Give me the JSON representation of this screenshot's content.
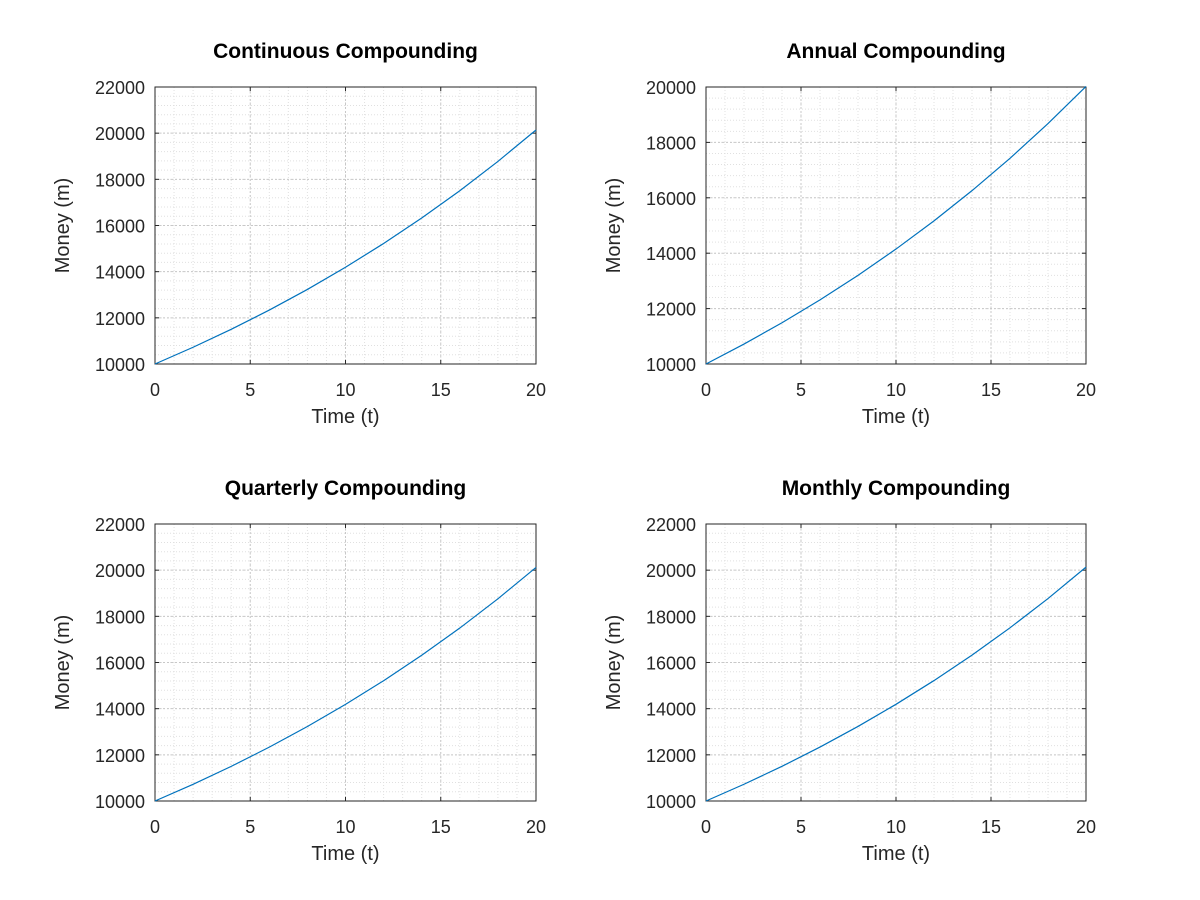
{
  "chart_data": [
    {
      "type": "line",
      "title": "Continuous Compounding",
      "xlabel": "Time (t)",
      "ylabel": "Money (m)",
      "xlim": [
        0,
        20
      ],
      "ylim": [
        10000,
        22000
      ],
      "xticks": [
        0,
        5,
        10,
        15,
        20
      ],
      "yticks": [
        10000,
        12000,
        14000,
        16000,
        18000,
        20000,
        22000
      ],
      "grid": true,
      "minor_grid": true,
      "series": [
        {
          "x": [
            0,
            2,
            4,
            6,
            8,
            10,
            12,
            14,
            16,
            18,
            20
          ],
          "y": [
            10000,
            10725,
            11503,
            12337,
            13231,
            14191,
            15220,
            16323,
            17507,
            18776,
            20138
          ],
          "color": "#0072bd"
        }
      ]
    },
    {
      "type": "line",
      "title": "Annual Compounding",
      "xlabel": "Time (t)",
      "ylabel": "Money (m)",
      "xlim": [
        0,
        20
      ],
      "ylim": [
        10000,
        20000
      ],
      "xticks": [
        0,
        5,
        10,
        15,
        20
      ],
      "yticks": [
        10000,
        12000,
        14000,
        16000,
        18000,
        20000
      ],
      "grid": true,
      "minor_grid": true,
      "series": [
        {
          "x": [
            0,
            2,
            4,
            6,
            8,
            10,
            12,
            14,
            16,
            18,
            20
          ],
          "y": [
            10000,
            10719,
            11490,
            12316,
            13201,
            14150,
            15167,
            16258,
            17426,
            18679,
            20022
          ],
          "color": "#0072bd"
        }
      ]
    },
    {
      "type": "line",
      "title": "Quarterly Compounding",
      "xlabel": "Time (t)",
      "ylabel": "Money (m)",
      "xlim": [
        0,
        20
      ],
      "ylim": [
        10000,
        22000
      ],
      "xticks": [
        0,
        5,
        10,
        15,
        20
      ],
      "yticks": [
        10000,
        12000,
        14000,
        16000,
        18000,
        20000,
        22000
      ],
      "grid": true,
      "minor_grid": true,
      "series": [
        {
          "x": [
            0,
            2,
            4,
            6,
            8,
            10,
            12,
            14,
            16,
            18,
            20
          ],
          "y": [
            10000,
            10724,
            11500,
            12333,
            13226,
            14184,
            15211,
            16312,
            17493,
            18760,
            20118
          ],
          "color": "#0072bd"
        }
      ]
    },
    {
      "type": "line",
      "title": "Monthly Compounding",
      "xlabel": "Time (t)",
      "ylabel": "Money (m)",
      "xlim": [
        0,
        20
      ],
      "ylim": [
        10000,
        22000
      ],
      "xticks": [
        0,
        5,
        10,
        15,
        20
      ],
      "yticks": [
        10000,
        12000,
        14000,
        16000,
        18000,
        20000,
        22000
      ],
      "grid": true,
      "minor_grid": true,
      "series": [
        {
          "x": [
            0,
            2,
            4,
            6,
            8,
            10,
            12,
            14,
            16,
            18,
            20
          ],
          "y": [
            10000,
            10725,
            11502,
            12336,
            13230,
            14189,
            15217,
            16320,
            17503,
            18771,
            20132
          ],
          "color": "#0072bd"
        }
      ]
    }
  ]
}
